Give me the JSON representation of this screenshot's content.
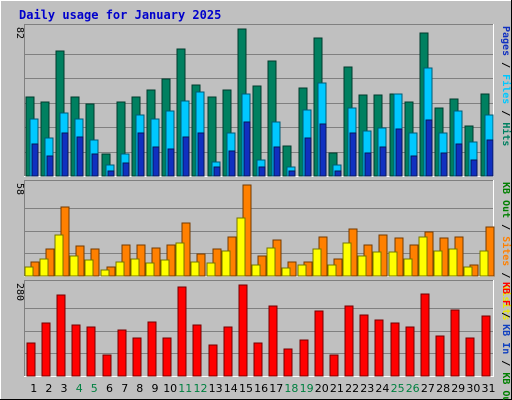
{
  "chart_data": {
    "type": "bar",
    "title": "Daily usage for January 2025",
    "categories": [
      "1",
      "2",
      "3",
      "4",
      "5",
      "6",
      "7",
      "8",
      "9",
      "10",
      "11",
      "12",
      "13",
      "14",
      "15",
      "16",
      "17",
      "18",
      "19",
      "20",
      "21",
      "22",
      "23",
      "24",
      "25",
      "26",
      "27",
      "28",
      "29",
      "30",
      "31"
    ],
    "weekend_days": [
      "4",
      "5",
      "11",
      "12",
      "18",
      "19",
      "25",
      "26"
    ],
    "colors": {
      "hits": "#008060",
      "files": "#00c8ff",
      "pages": "#1030c0",
      "visits": "#ffff00",
      "sites": "#ff8000",
      "kbytes": "#ff0000",
      "title": "#0000cc",
      "weekday_tick": "#000000",
      "weekend_tick": "#008040",
      "panel_bg": "#c0c0c0"
    },
    "panels": [
      {
        "ymax_label": "82",
        "ymax": 82,
        "side_labels": [
          {
            "text": "Pages",
            "color": "#1030c0"
          },
          {
            "text": " / ",
            "color": "#000000"
          },
          {
            "text": "Files",
            "color": "#00c8ff"
          },
          {
            "text": " / ",
            "color": "#000000"
          },
          {
            "text": "Hits",
            "color": "#008060"
          }
        ],
        "series": [
          {
            "name": "Hits",
            "color": "#008060",
            "values": [
              44,
              41,
              70,
              44,
              40,
              12,
              41,
              44,
              48,
              54,
              71,
              51,
              44,
              48,
              82,
              50,
              64,
              17,
              49,
              77,
              13,
              61,
              45,
              45,
              46,
              41,
              80,
              38,
              43,
              28,
              46
            ]
          },
          {
            "name": "Files",
            "color": "#00c8ff",
            "values": [
              32,
              21,
              35,
              32,
              20,
              6,
              12,
              34,
              32,
              36,
              42,
              47,
              8,
              24,
              46,
              9,
              30,
              5,
              37,
              52,
              6,
              38,
              25,
              27,
              46,
              24,
              60,
              24,
              36,
              19,
              34
            ]
          },
          {
            "name": "Pages",
            "color": "#1030c0",
            "values": [
              18,
              11,
              24,
              22,
              12,
              3,
              7,
              24,
              16,
              15,
              22,
              24,
              5,
              14,
              30,
              5,
              16,
              3,
              21,
              29,
              3,
              24,
              13,
              16,
              26,
              11,
              31,
              13,
              18,
              9,
              20
            ]
          }
        ]
      },
      {
        "ymax_label": "58",
        "ymax": 58,
        "side_labels": [
          {
            "text": "KB Out",
            "color": "#008000"
          },
          {
            "text": " / ",
            "color": "#000000"
          },
          {
            "text": "Sites",
            "color": "#ff8000"
          },
          {
            "text": " / ",
            "color": "#000000"
          },
          {
            "text": "Visits",
            "color": "#e8e800"
          }
        ],
        "series": [
          {
            "name": "Sites",
            "color": "#ff8000",
            "values": [
              9,
              17,
              44,
              19,
              17,
              6,
              20,
              20,
              18,
              20,
              34,
              14,
              17,
              25,
              58,
              13,
              23,
              9,
              9,
              25,
              11,
              30,
              20,
              26,
              24,
              20,
              28,
              24,
              25,
              7,
              31
            ]
          },
          {
            "name": "Visits",
            "color": "#ffff00",
            "values": [
              6,
              11,
              26,
              13,
              10,
              4,
              9,
              11,
              8,
              10,
              21,
              9,
              8,
              16,
              37,
              7,
              18,
              5,
              7,
              17,
              7,
              21,
              13,
              15,
              15,
              11,
              25,
              16,
              17,
              6,
              16
            ]
          }
        ]
      },
      {
        "ymax_label": "280",
        "ymax": 280,
        "side_labels": [
          {
            "text": "KB F",
            "color": "#ff0000"
          },
          {
            "text": " / ",
            "color": "#000000"
          },
          {
            "text": "KB In",
            "color": "#1040c0"
          },
          {
            "text": " / ",
            "color": "#000000"
          },
          {
            "text": "KB Out",
            "color": "#008000"
          }
        ],
        "series": [
          {
            "name": "KBytes",
            "color": "#ff0000",
            "values": [
              102,
              162,
              248,
              158,
              150,
              65,
              142,
              116,
              166,
              116,
              274,
              156,
              94,
              150,
              280,
              100,
              216,
              84,
              112,
              200,
              64,
              214,
              188,
              172,
              164,
              150,
              252,
              122,
              204,
              116,
              184
            ]
          }
        ]
      }
    ]
  }
}
